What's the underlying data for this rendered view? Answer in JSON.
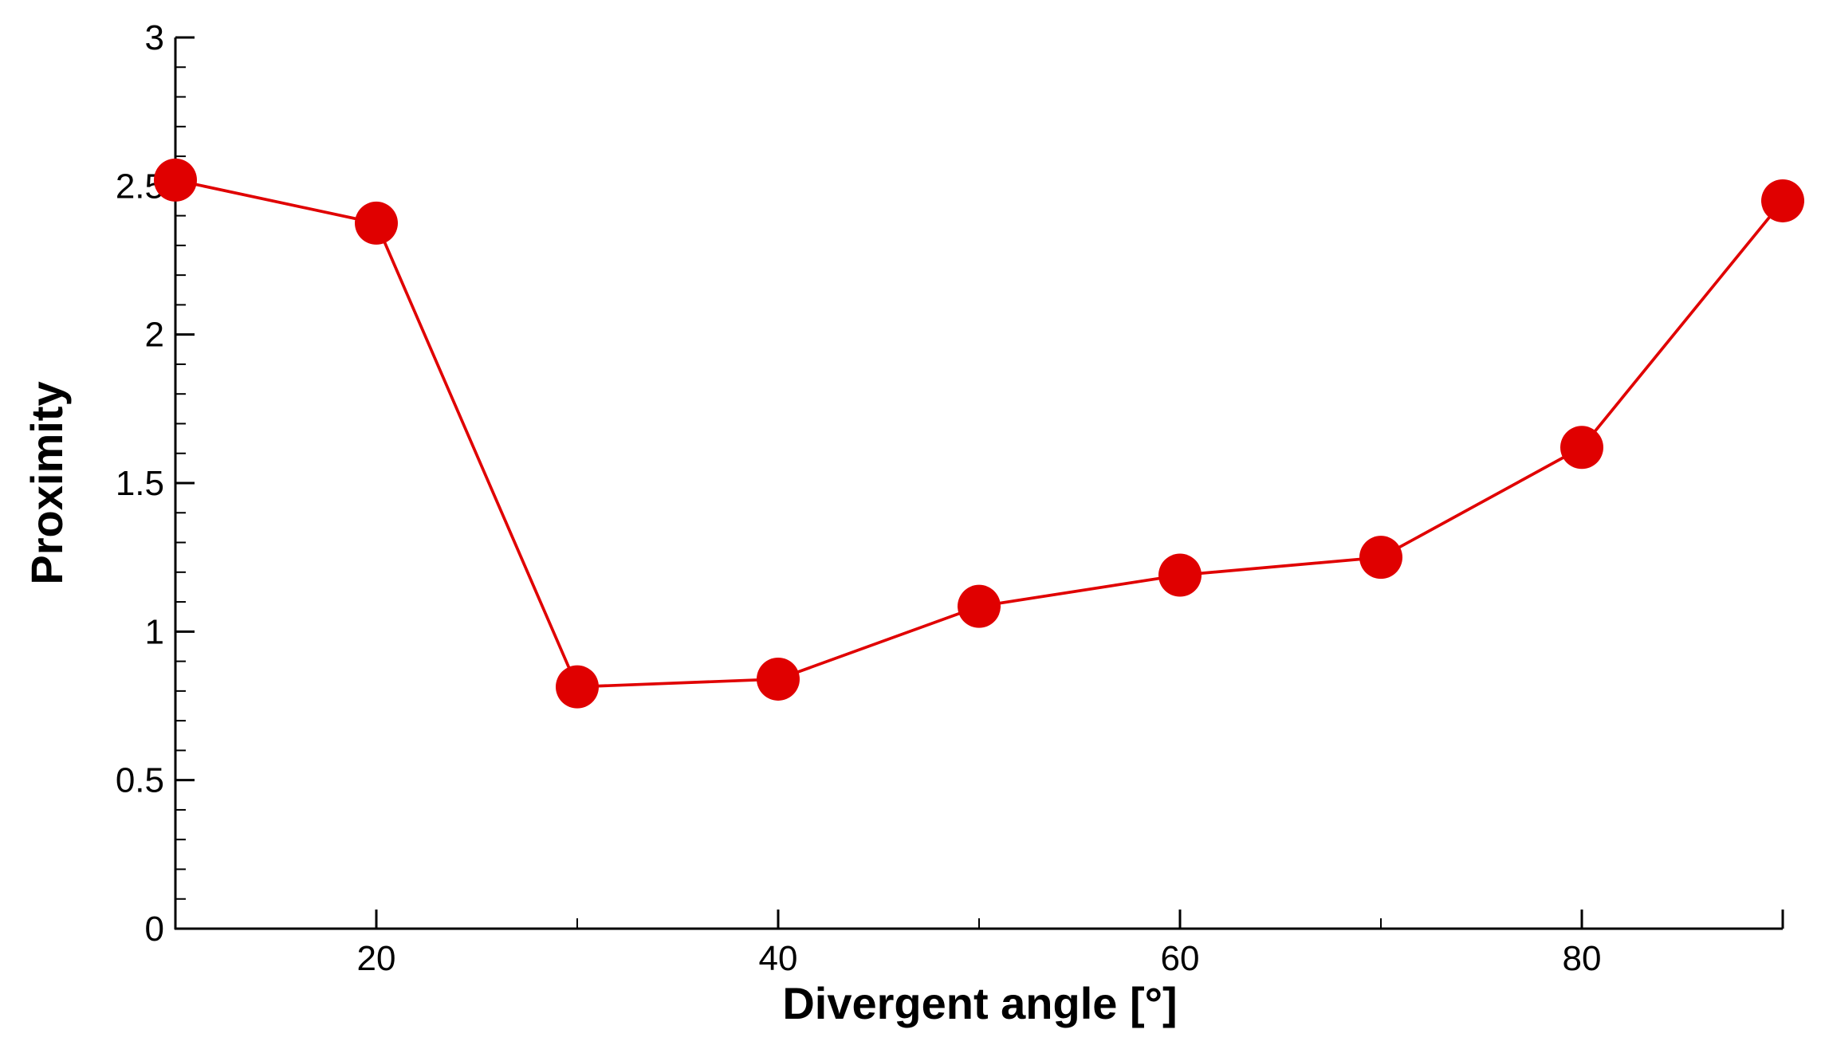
{
  "chart_data": {
    "type": "line",
    "x_label": "Divergent angle [°]",
    "y_label": "Proximity",
    "series": [
      {
        "color": "#e00000",
        "x": [
          10,
          20,
          30,
          40,
          50,
          60,
          70,
          80,
          90
        ],
        "values": [
          2.52,
          2.375,
          0.814,
          0.84,
          1.085,
          1.19,
          1.25,
          1.62,
          2.45
        ]
      }
    ],
    "xlim": [
      10,
      90
    ],
    "xticks": [
      20,
      40,
      60,
      80
    ],
    "ylim": [
      0,
      3
    ],
    "yticks": [
      0,
      0.5,
      1,
      1.5,
      2,
      2.5,
      3
    ]
  }
}
